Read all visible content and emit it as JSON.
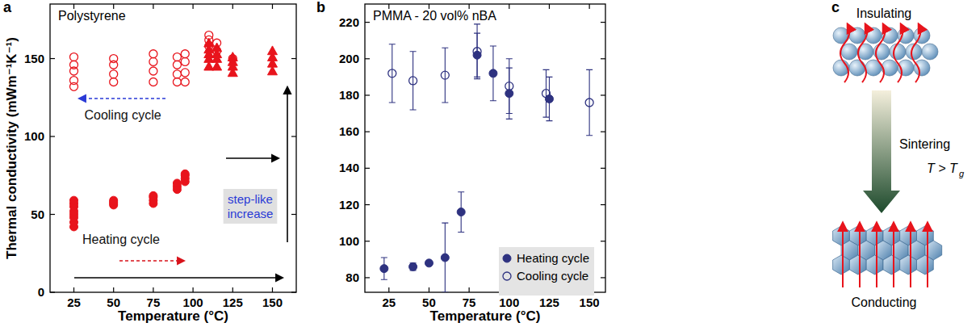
{
  "chart_data": [
    {
      "label": "a",
      "type": "scatter",
      "title": "Polystyrene",
      "x_label": "Temperature (°C)",
      "y_label": "Thermal conductivity (mWm⁻¹K⁻¹)",
      "xlim": [
        10,
        165
      ],
      "ylim": [
        0,
        185
      ],
      "xticks": [
        25,
        50,
        75,
        100,
        125,
        150
      ],
      "yticks": [
        0,
        50,
        100,
        150
      ],
      "annotations": [
        "Cooling cycle",
        "Heating cycle",
        "step-like increase"
      ],
      "series": [
        {
          "color": "#e8141c",
          "marker": "circle",
          "x": [
            25,
            25,
            25,
            25,
            25,
            25,
            25,
            25,
            50,
            50,
            50,
            50,
            75,
            75,
            75,
            75,
            90,
            90,
            90,
            95,
            95,
            95,
            95
          ],
          "values": [
            42,
            45,
            48,
            50,
            52,
            55,
            57,
            59,
            56,
            57,
            58,
            59,
            57,
            59,
            61,
            62,
            66,
            68,
            70,
            71,
            73,
            75,
            76
          ]
        },
        {
          "color": "#e8141c",
          "marker": "triangle",
          "x": [
            110,
            110,
            110,
            110,
            110,
            115,
            115,
            115,
            115,
            125,
            125,
            125,
            125,
            150,
            150,
            150,
            150
          ],
          "values": [
            145,
            150,
            153,
            156,
            160,
            145,
            150,
            153,
            157,
            141,
            145,
            148,
            151,
            142,
            147,
            151,
            155
          ]
        },
        {
          "color": "#e8141c",
          "marker": "open_circle",
          "x": [
            25,
            25,
            25,
            25,
            25,
            50,
            50,
            50,
            50,
            75,
            75,
            75,
            75,
            90,
            90,
            90,
            90,
            95,
            95,
            95,
            95,
            110,
            110,
            110,
            115,
            115,
            125
          ],
          "values": [
            132,
            136,
            142,
            146,
            151,
            135,
            140,
            146,
            150,
            135,
            142,
            148,
            153,
            135,
            140,
            146,
            151,
            135,
            141,
            148,
            153,
            158,
            162,
            165,
            155,
            160,
            150
          ]
        }
      ]
    },
    {
      "label": "b",
      "type": "scatter",
      "title": "PMMA - 20 vol% nBA",
      "x_label": "Temperature (°C)",
      "xlim": [
        10,
        160
      ],
      "ylim": [
        72,
        230
      ],
      "xticks": [
        25,
        50,
        75,
        100,
        125,
        150
      ],
      "yticks": [
        80,
        100,
        120,
        140,
        160,
        180,
        200,
        220
      ],
      "legend": "lower right",
      "series": [
        {
          "name": "Heating cycle",
          "color": "#2e3280",
          "marker": "circle",
          "x": [
            22,
            40,
            50,
            60,
            70,
            80,
            90,
            100,
            125
          ],
          "values": [
            85,
            86,
            88,
            91,
            116,
            202,
            192,
            181,
            178
          ],
          "errors": [
            6,
            2,
            1,
            19,
            11,
            12,
            15,
            14,
            12
          ]
        },
        {
          "name": "Cooling cycle",
          "color": "#2e3280",
          "marker": "open_circle",
          "x": [
            27,
            40,
            60,
            80,
            100,
            123,
            150
          ],
          "values": [
            192,
            188,
            191,
            204,
            185,
            181,
            176
          ],
          "errors": [
            16,
            16,
            15,
            15,
            15,
            13,
            18
          ]
        }
      ]
    }
  ],
  "diagram": {
    "label": "c",
    "top_label": "Insulating",
    "process": "Sintering",
    "condition": {
      "text": "T > T",
      "subscript": "g"
    },
    "bottom_label": "Conducting"
  }
}
